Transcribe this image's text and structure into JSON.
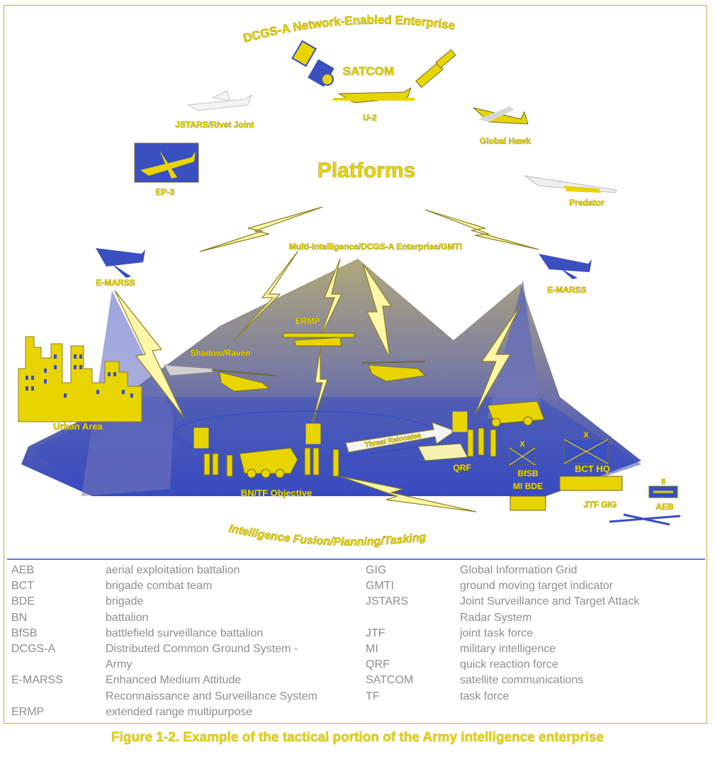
{
  "diagram": {
    "title_arc": "DCGS-A Network-Enabled Enterprise",
    "center_title": "Platforms",
    "network_label": "Multi-Intelligence/DCGS-A Enterprise/GMTI",
    "bottom_arc": "Intelligence Fusion/Planning/Tasking",
    "labels": {
      "satcom": "SATCOM",
      "u2": "U-2",
      "jstars": "JSTARS/Rivet Joint",
      "global_hawk": "Global Hawk",
      "ep3": "EP-3",
      "predator": "Predator",
      "emarss_left": "E-MARSS",
      "emarss_right": "E-MARSS",
      "ermp": "ERMP",
      "shadow": "Shadow/Raven",
      "urban": "Urban Area",
      "threat": "Threat Relocates",
      "qrf": "QRF",
      "bfsb": "BfSB",
      "mi_bde": "MI BDE",
      "bct_hq": "BCT HQ",
      "jtf_gig": "JTF GIG",
      "aeb": "AEB",
      "bn_tf": "BN/TF Objective",
      "x1": "X",
      "x2": "X",
      "ii": "II"
    }
  },
  "legend": {
    "left": [
      {
        "abbr": "AEB",
        "def": "aerial exploitation battalion"
      },
      {
        "abbr": "BCT",
        "def": "brigade combat team"
      },
      {
        "abbr": "BDE",
        "def": "brigade"
      },
      {
        "abbr": "BN",
        "def": "battalion"
      },
      {
        "abbr": "BfSB",
        "def": "battlefield surveillance battalion"
      },
      {
        "abbr": "DCGS-A",
        "def": "Distributed Common Ground System -"
      },
      {
        "abbr": "",
        "def": "Army"
      },
      {
        "abbr": "E-MARSS",
        "def": "Enhanced Medium Attitude"
      },
      {
        "abbr": "",
        "def": "Reconnaissance and Surveillance System"
      },
      {
        "abbr": "ERMP",
        "def": "extended range multipurpose"
      }
    ],
    "right": [
      {
        "abbr": "GIG",
        "def": "Global Information Grid"
      },
      {
        "abbr": "GMTI",
        "def": "ground moving target indicator"
      },
      {
        "abbr": "JSTARS",
        "def": "Joint Surveillance and Target Attack"
      },
      {
        "abbr": "",
        "def": "Radar System"
      },
      {
        "abbr": "JTF",
        "def": "joint task force"
      },
      {
        "abbr": "MI",
        "def": "military intelligence"
      },
      {
        "abbr": "QRF",
        "def": "quick reaction force"
      },
      {
        "abbr": "SATCOM",
        "def": "satellite communications"
      },
      {
        "abbr": "TF",
        "def": "task force"
      }
    ]
  },
  "caption": "Figure 1-2. Example of the tactical portion of the Army intelligence enterprise",
  "colors": {
    "yellow": "#e8d400",
    "blue": "#3a4fc0",
    "gray_text": "#8e8e8e"
  }
}
